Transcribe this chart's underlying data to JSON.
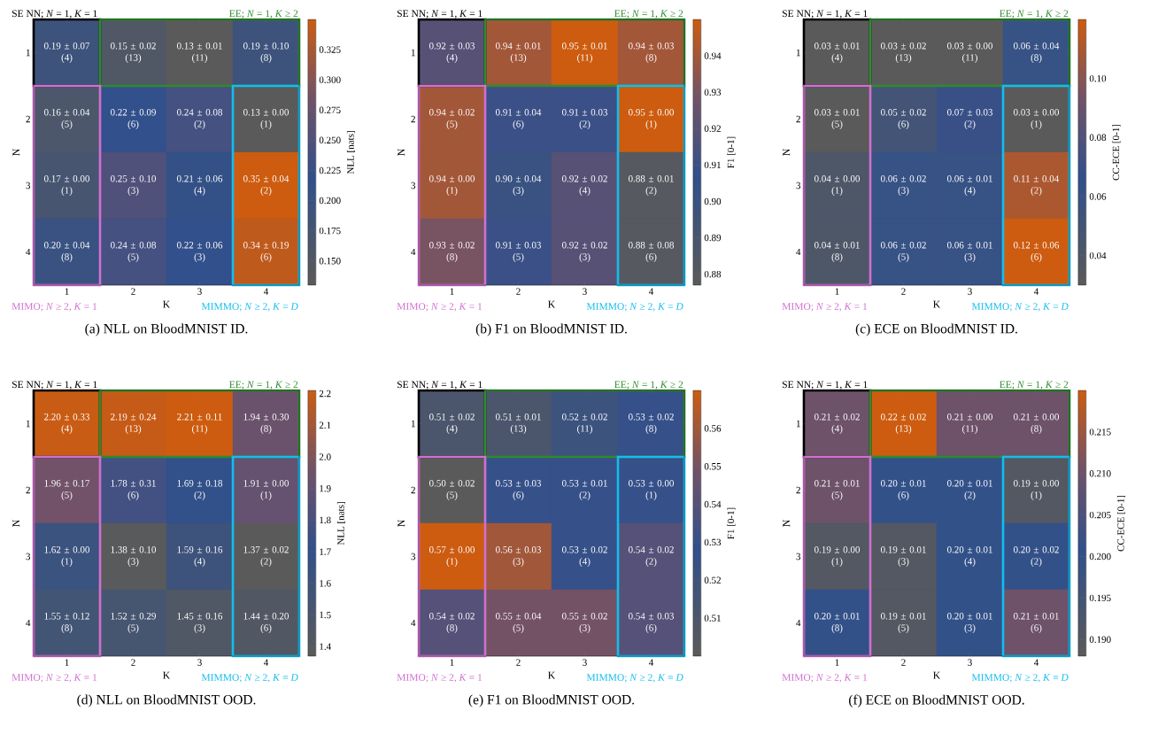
{
  "chart_data": [
    {
      "type": "heatmap",
      "title": "(a) NLL on BloodMNIST ID.",
      "xlabel": "K",
      "ylabel": "N",
      "clabel": "NLL [nats]",
      "categories": [
        "1",
        "2",
        "3",
        "4"
      ],
      "y_categories": [
        "1",
        "2",
        "3",
        "4"
      ],
      "cells": [
        [
          0.19,
          0.15,
          0.13,
          0.19
        ],
        [
          0.16,
          0.22,
          0.24,
          0.13
        ],
        [
          0.17,
          0.25,
          0.21,
          0.35
        ],
        [
          0.2,
          0.24,
          0.22,
          0.34
        ]
      ],
      "cell_labels": [
        [
          "0.19 ± 0.07\n(4)",
          "0.15 ± 0.02\n(13)",
          "0.13 ± 0.01\n(11)",
          "0.19 ± 0.10\n(8)"
        ],
        [
          "0.16 ± 0.04\n(5)",
          "0.22 ± 0.09\n(6)",
          "0.24 ± 0.08\n(2)",
          "0.13 ± 0.00\n(1)"
        ],
        [
          "0.17 ± 0.00\n(1)",
          "0.25 ± 0.10\n(3)",
          "0.21 ± 0.06\n(4)",
          "0.35 ± 0.04\n(2)"
        ],
        [
          "0.20 ± 0.04\n(8)",
          "0.24 ± 0.08\n(5)",
          "0.22 ± 0.06\n(3)",
          "0.34 ± 0.19\n(6)"
        ]
      ],
      "clim": [
        0.13,
        0.35
      ],
      "cticks": [
        {
          "value": 0.15,
          "label": "0.150"
        },
        {
          "value": 0.175,
          "label": "0.175"
        },
        {
          "value": 0.2,
          "label": "0.200"
        },
        {
          "value": 0.225,
          "label": "0.225"
        },
        {
          "value": 0.25,
          "label": "0.250"
        },
        {
          "value": 0.275,
          "label": "0.275"
        },
        {
          "value": 0.3,
          "label": "0.300"
        },
        {
          "value": 0.325,
          "label": "0.325"
        }
      ],
      "annotations": [
        "SE NN; *N* = 1, *K* = 1",
        "EE; *N* = 1, *K* ≥ 2",
        "MIMO; *N* ≥ 2, *K* = 1",
        "MIMMO; *N* ≥ 2, *K* = *D*"
      ]
    },
    {
      "type": "heatmap",
      "title": "(b) F1 on BloodMNIST ID.",
      "xlabel": "K",
      "ylabel": "N",
      "clabel": "F1 [0-1]",
      "categories": [
        "1",
        "2",
        "3",
        "4"
      ],
      "y_categories": [
        "1",
        "2",
        "3",
        "4"
      ],
      "cells": [
        [
          0.92,
          0.94,
          0.95,
          0.94
        ],
        [
          0.94,
          0.91,
          0.91,
          0.95
        ],
        [
          0.94,
          0.9,
          0.92,
          0.88
        ],
        [
          0.93,
          0.91,
          0.92,
          0.88
        ]
      ],
      "cell_labels": [
        [
          "0.92 ± 0.03\n(4)",
          "0.94 ± 0.01\n(13)",
          "0.95 ± 0.01\n(11)",
          "0.94 ± 0.03\n(8)"
        ],
        [
          "0.94 ± 0.02\n(5)",
          "0.91 ± 0.04\n(6)",
          "0.91 ± 0.03\n(2)",
          "0.95 ± 0.00\n(1)"
        ],
        [
          "0.94 ± 0.00\n(1)",
          "0.90 ± 0.04\n(3)",
          "0.92 ± 0.02\n(4)",
          "0.88 ± 0.01\n(2)"
        ],
        [
          "0.93 ± 0.02\n(8)",
          "0.91 ± 0.03\n(5)",
          "0.92 ± 0.02\n(3)",
          "0.88 ± 0.08\n(6)"
        ]
      ],
      "clim": [
        0.877,
        0.95
      ],
      "cticks": [
        {
          "value": 0.88,
          "label": "0.88"
        },
        {
          "value": 0.89,
          "label": "0.89"
        },
        {
          "value": 0.9,
          "label": "0.90"
        },
        {
          "value": 0.91,
          "label": "0.91"
        },
        {
          "value": 0.92,
          "label": "0.92"
        },
        {
          "value": 0.93,
          "label": "0.93"
        },
        {
          "value": 0.94,
          "label": "0.94"
        }
      ],
      "annotations": [
        "SE NN; *N* = 1, *K* = 1",
        "EE; *N* = 1, *K* ≥ 2",
        "MIMO; *N* ≥ 2, *K* = 1",
        "MIMMO; *N* ≥ 2, *K* = *D*"
      ]
    },
    {
      "type": "heatmap",
      "title": "(c) ECE on BloodMNIST ID.",
      "xlabel": "K",
      "ylabel": "N",
      "clabel": "CC-ECE [0-1]",
      "categories": [
        "1",
        "2",
        "3",
        "4"
      ],
      "y_categories": [
        "1",
        "2",
        "3",
        "4"
      ],
      "cells": [
        [
          0.03,
          0.03,
          0.03,
          0.06
        ],
        [
          0.03,
          0.05,
          0.07,
          0.03
        ],
        [
          0.04,
          0.06,
          0.06,
          0.11
        ],
        [
          0.04,
          0.06,
          0.06,
          0.12
        ]
      ],
      "cell_labels": [
        [
          "0.03 ± 0.01\n(4)",
          "0.03 ± 0.02\n(13)",
          "0.03 ± 0.00\n(11)",
          "0.06 ± 0.04\n(8)"
        ],
        [
          "0.03 ± 0.01\n(5)",
          "0.05 ± 0.02\n(6)",
          "0.07 ± 0.03\n(2)",
          "0.03 ± 0.00\n(1)"
        ],
        [
          "0.04 ± 0.00\n(1)",
          "0.06 ± 0.02\n(3)",
          "0.06 ± 0.01\n(4)",
          "0.11 ± 0.04\n(2)"
        ],
        [
          "0.04 ± 0.01\n(8)",
          "0.06 ± 0.02\n(5)",
          "0.06 ± 0.01\n(3)",
          "0.12 ± 0.06\n(6)"
        ]
      ],
      "clim": [
        0.03,
        0.12
      ],
      "cticks": [
        {
          "value": 0.04,
          "label": "0.04"
        },
        {
          "value": 0.06,
          "label": "0.06"
        },
        {
          "value": 0.08,
          "label": "0.08"
        },
        {
          "value": 0.1,
          "label": "0.10"
        }
      ],
      "annotations": [
        "SE NN; *N* = 1, *K* = 1",
        "EE; *N* = 1, *K* ≥ 2",
        "MIMO; *N* ≥ 2, *K* = 1",
        "MIMMO; *N* ≥ 2, *K* = *D*"
      ]
    },
    {
      "type": "heatmap",
      "title": "(d) NLL on BloodMNIST OOD.",
      "xlabel": "K",
      "ylabel": "N",
      "clabel": "NLL [nats]",
      "categories": [
        "1",
        "2",
        "3",
        "4"
      ],
      "y_categories": [
        "1",
        "2",
        "3",
        "4"
      ],
      "cells": [
        [
          2.2,
          2.19,
          2.21,
          1.94
        ],
        [
          1.96,
          1.78,
          1.69,
          1.91
        ],
        [
          1.62,
          1.38,
          1.59,
          1.37
        ],
        [
          1.55,
          1.52,
          1.45,
          1.44
        ]
      ],
      "cell_labels": [
        [
          "2.20 ± 0.33\n(4)",
          "2.19 ± 0.24\n(13)",
          "2.21 ± 0.11\n(11)",
          "1.94 ± 0.30\n(8)"
        ],
        [
          "1.96 ± 0.17\n(5)",
          "1.78 ± 0.31\n(6)",
          "1.69 ± 0.18\n(2)",
          "1.91 ± 0.00\n(1)"
        ],
        [
          "1.62 ± 0.00\n(1)",
          "1.38 ± 0.10\n(3)",
          "1.59 ± 0.16\n(4)",
          "1.37 ± 0.02\n(2)"
        ],
        [
          "1.55 ± 0.12\n(8)",
          "1.52 ± 0.29\n(5)",
          "1.45 ± 0.16\n(3)",
          "1.44 ± 0.20\n(6)"
        ]
      ],
      "clim": [
        1.37,
        2.21
      ],
      "cticks": [
        1.4,
        1.5,
        1.6,
        1.7,
        1.8,
        1.9,
        {
          "value": 2.0,
          "label": "2.0"
        },
        2.1,
        2.2
      ],
      "annotations": [
        "SE NN; *N* = 1, *K* = 1",
        "EE; *N* = 1, *K* ≥ 2",
        "MIMO; *N* ≥ 2, *K* = 1",
        "MIMMO; *N* ≥ 2, *K* = *D*"
      ]
    },
    {
      "type": "heatmap",
      "title": "(e) F1 on BloodMNIST OOD.",
      "xlabel": "K",
      "ylabel": "N",
      "clabel": "F1 [0-1]",
      "categories": [
        "1",
        "2",
        "3",
        "4"
      ],
      "y_categories": [
        "1",
        "2",
        "3",
        "4"
      ],
      "cells": [
        [
          0.51,
          0.51,
          0.52,
          0.53
        ],
        [
          0.5,
          0.53,
          0.53,
          0.53
        ],
        [
          0.57,
          0.56,
          0.53,
          0.54
        ],
        [
          0.54,
          0.55,
          0.55,
          0.54
        ]
      ],
      "cell_labels": [
        [
          "0.51 ± 0.02\n(4)",
          "0.51 ± 0.01\n(13)",
          "0.52 ± 0.02\n(11)",
          "0.53 ± 0.02\n(8)"
        ],
        [
          "0.50 ± 0.02\n(5)",
          "0.53 ± 0.03\n(6)",
          "0.53 ± 0.01\n(2)",
          "0.53 ± 0.00\n(1)"
        ],
        [
          "0.57 ± 0.00\n(1)",
          "0.56 ± 0.03\n(3)",
          "0.53 ± 0.02\n(4)",
          "0.54 ± 0.02\n(2)"
        ],
        [
          "0.54 ± 0.02\n(8)",
          "0.55 ± 0.04\n(5)",
          "0.55 ± 0.02\n(3)",
          "0.54 ± 0.03\n(6)"
        ]
      ],
      "clim": [
        0.5,
        0.57
      ],
      "cticks": [
        0.51,
        0.52,
        0.53,
        0.54,
        0.55,
        0.56
      ],
      "annotations": [
        "SE NN; *N* = 1, *K* = 1",
        "EE; *N* = 1, *K* ≥ 2",
        "MIMO; *N* ≥ 2, *K* = 1",
        "MIMMO; *N* ≥ 2, *K* = *D*"
      ]
    },
    {
      "type": "heatmap",
      "title": "(f) ECE on BloodMNIST OOD.",
      "xlabel": "K",
      "ylabel": "N",
      "clabel": "CC-ECE [0-1]",
      "categories": [
        "1",
        "2",
        "3",
        "4"
      ],
      "y_categories": [
        "1",
        "2",
        "3",
        "4"
      ],
      "cells": [
        [
          0.21,
          0.22,
          0.21,
          0.21
        ],
        [
          0.21,
          0.2,
          0.2,
          0.19
        ],
        [
          0.19,
          0.19,
          0.2,
          0.2
        ],
        [
          0.2,
          0.19,
          0.2,
          0.21
        ]
      ],
      "cell_labels": [
        [
          "0.21 ± 0.02\n(4)",
          "0.22 ± 0.02\n(13)",
          "0.21 ± 0.00\n(11)",
          "0.21 ± 0.00\n(8)"
        ],
        [
          "0.21 ± 0.01\n(5)",
          "0.20 ± 0.01\n(6)",
          "0.20 ± 0.01\n(2)",
          "0.19 ± 0.00\n(1)"
        ],
        [
          "0.19 ± 0.00\n(1)",
          "0.19 ± 0.01\n(3)",
          "0.20 ± 0.01\n(4)",
          "0.20 ± 0.02\n(2)"
        ],
        [
          "0.20 ± 0.01\n(8)",
          "0.19 ± 0.01\n(5)",
          "0.20 ± 0.01\n(3)",
          "0.21 ± 0.01\n(6)"
        ]
      ],
      "clim": [
        0.188,
        0.22
      ],
      "cticks": [
        {
          "value": 0.19,
          "label": "0.190"
        },
        {
          "value": 0.195,
          "label": "0.195"
        },
        {
          "value": 0.2,
          "label": "0.200"
        },
        {
          "value": 0.205,
          "label": "0.205"
        },
        {
          "value": 0.21,
          "label": "0.210"
        },
        {
          "value": 0.215,
          "label": "0.215"
        }
      ],
      "annotations": [
        "SE NN; *N* = 1, *K* = 1",
        "EE; *N* = 1, *K* ≥ 2",
        "MIMO; *N* ≥ 2, *K* = 1",
        "MIMMO; *N* ≥ 2, *K* = *D*"
      ]
    }
  ]
}
